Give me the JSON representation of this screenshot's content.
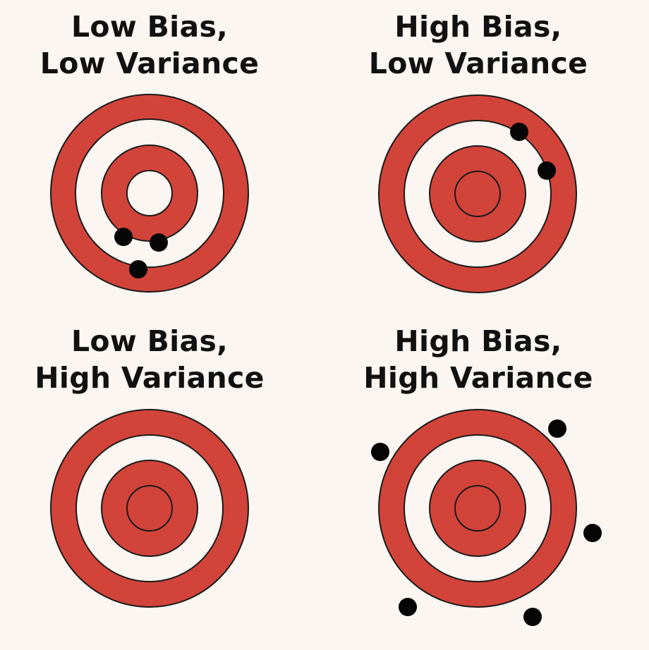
{
  "colors": {
    "background": "#fbf6f1",
    "ring_red": "#d2443a",
    "ring_white": "#fbf6f1",
    "outline": "#1a1a1a",
    "hit_dot": "#050505"
  },
  "panels": [
    {
      "id": "tl",
      "line1": "Low Bias,",
      "line2": "Low Variance"
    },
    {
      "id": "tr",
      "line1": "High Bias,",
      "line2": "Low Variance"
    },
    {
      "id": "bl",
      "line1": "Low Bias,",
      "line2": "High Variance"
    },
    {
      "id": "br",
      "line1": "High Bias,",
      "line2": "High Variance"
    }
  ]
}
